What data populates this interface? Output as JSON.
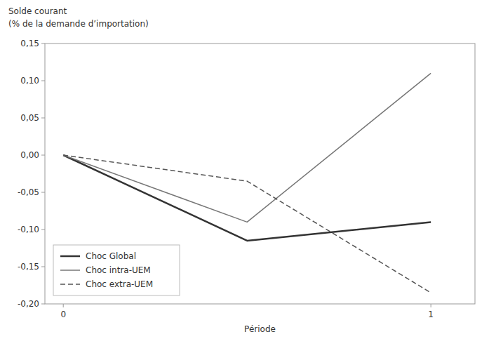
{
  "chart_data": {
    "type": "line",
    "x_label": "Période",
    "y_label": [
      "Solde courant",
      "(% de la demande d’importation)"
    ],
    "x": [
      0,
      0.5,
      1
    ],
    "series": [
      {
        "name": "Choc Global",
        "color": "#333333",
        "line_style": "solid",
        "values": [
          0.0,
          -0.115,
          -0.09
        ]
      },
      {
        "name": "Choc intra-UEM",
        "color": "#777777",
        "line_style": "solid",
        "values": [
          0.0,
          -0.09,
          0.11
        ]
      },
      {
        "name": "Choc extra-UEM",
        "color": "#555555",
        "line_style": "dashed",
        "values": [
          0.0,
          -0.035,
          -0.185
        ]
      }
    ],
    "xlim": [
      -0.05,
      1.12
    ],
    "xticks": [
      0,
      1
    ],
    "ylim": [
      -0.2,
      0.15
    ],
    "yticks": [
      {
        "value": -0.2,
        "label": "-0,20"
      },
      {
        "value": -0.15,
        "label": "-0,15"
      },
      {
        "value": -0.1,
        "label": "-0,10"
      },
      {
        "value": -0.05,
        "label": "-0,05"
      },
      {
        "value": 0.0,
        "label": "0,00"
      },
      {
        "value": 0.05,
        "label": "0,05"
      },
      {
        "value": 0.1,
        "label": "0,10"
      },
      {
        "value": 0.15,
        "label": "0,15"
      }
    ],
    "grid": false,
    "legend": "lower left"
  }
}
